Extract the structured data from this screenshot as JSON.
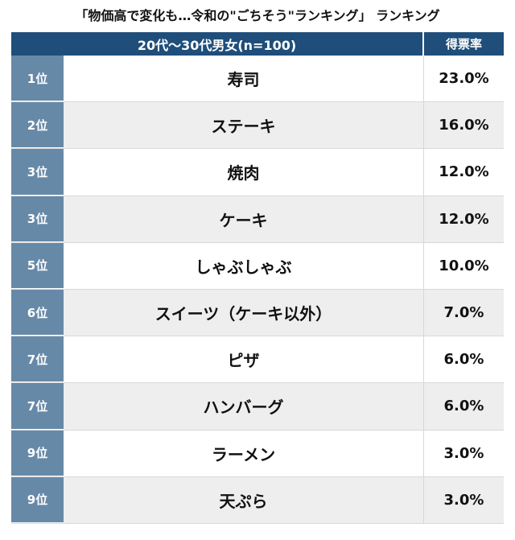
{
  "chart_data": {
    "type": "table",
    "title": "「物価高で変化も…令和の\"ごちそう\"ランキング」 ランキング",
    "header": {
      "group_label": "20代〜30代男女(n=100)",
      "value_label": "得票率"
    },
    "rows": [
      {
        "rank": "1位",
        "item": "寿司",
        "value": "23.0%"
      },
      {
        "rank": "2位",
        "item": "ステーキ",
        "value": "16.0%"
      },
      {
        "rank": "3位",
        "item": "焼肉",
        "value": "12.0%"
      },
      {
        "rank": "3位",
        "item": "ケーキ",
        "value": "12.0%"
      },
      {
        "rank": "5位",
        "item": "しゃぶしゃぶ",
        "value": "10.0%"
      },
      {
        "rank": "6位",
        "item": "スイーツ（ケーキ以外）",
        "value": "7.0%"
      },
      {
        "rank": "7位",
        "item": "ピザ",
        "value": "6.0%"
      },
      {
        "rank": "7位",
        "item": "ハンバーグ",
        "value": "6.0%"
      },
      {
        "rank": "9位",
        "item": "ラーメン",
        "value": "3.0%"
      },
      {
        "rank": "9位",
        "item": "天ぷら",
        "value": "3.0%"
      }
    ]
  }
}
